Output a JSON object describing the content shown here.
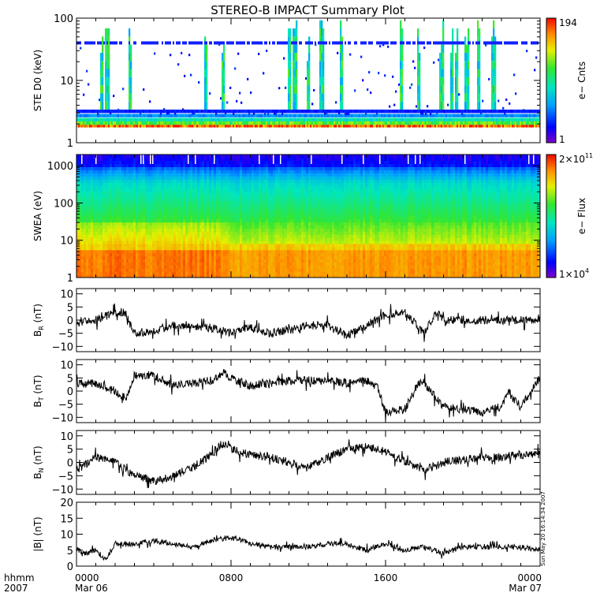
{
  "title": "STEREO-B IMPACT Summary Plot",
  "timestamp": "Sun May 20 16:14:34 2007",
  "x_axis": {
    "header_top": "hhmm",
    "header_bottom": "2007",
    "ticks": [
      {
        "hour": 0,
        "time": "0000",
        "date": "Mar 06"
      },
      {
        "hour": 8,
        "time": "0800",
        "date": ""
      },
      {
        "hour": 16,
        "time": "1600",
        "date": ""
      },
      {
        "hour": 24,
        "time": "0000",
        "date": "Mar 07"
      }
    ]
  },
  "chart_data": [
    {
      "type": "heatmap",
      "ylabel": "STE D0 (keV)",
      "yscale": "log",
      "ylim": [
        1,
        100
      ],
      "yticks": [
        {
          "v": 1,
          "label": "1"
        },
        {
          "v": 10,
          "label": "10"
        },
        {
          "v": 100,
          "label": "100"
        }
      ],
      "xlim": [
        0,
        24
      ],
      "colorbar": {
        "label": "e− Cnts",
        "max_label": "194",
        "min_label": "1",
        "range": [
          1,
          194
        ]
      },
      "bursts_hour": [
        1.3,
        1.6,
        2.8,
        6.7,
        7.6,
        11.0,
        11.3,
        12.0,
        12.7,
        13.7,
        16.8,
        17.7,
        18.9,
        19.4,
        19.7,
        20.2,
        20.8,
        21.6
      ],
      "band_keV": 40
    },
    {
      "type": "heatmap",
      "ylabel": "SWEA (eV)",
      "yscale": "log",
      "ylim": [
        1,
        2000
      ],
      "yticks": [
        {
          "v": 1,
          "label": "1"
        },
        {
          "v": 10,
          "label": "10"
        },
        {
          "v": 100,
          "label": "100"
        },
        {
          "v": 1000,
          "label": "1000"
        }
      ],
      "xlim": [
        0,
        24
      ],
      "colorbar": {
        "label": "e− Flux",
        "max_base": "2×10",
        "max_exp": "11",
        "min_base": "1×10",
        "min_exp": "4",
        "range": [
          10000,
          200000000000
        ]
      }
    },
    {
      "type": "line",
      "ylabel_base": "B",
      "ylabel_sub": "R",
      "ylabel_unit": " (nT)",
      "ylim": [
        -12,
        12
      ],
      "yticks": [
        {
          "v": 10,
          "label": "10"
        },
        {
          "v": 5,
          "label": "5"
        },
        {
          "v": 0,
          "label": "0"
        },
        {
          "v": -5,
          "label": "−5"
        },
        {
          "v": -10,
          "label": "−10"
        }
      ],
      "xlim": [
        0,
        24
      ],
      "x": [
        0,
        1,
        2,
        2.5,
        3,
        4,
        5,
        6,
        7,
        8,
        8.5,
        9,
        10,
        11,
        12,
        13,
        14,
        15,
        15.5,
        16,
        17,
        18,
        18.6,
        19,
        20,
        21,
        22,
        23,
        24
      ],
      "y": [
        0,
        0,
        3,
        3,
        -5,
        -4,
        -2,
        -2,
        -3,
        -5,
        -4,
        -3,
        -5,
        -4,
        -2,
        -2,
        -6,
        -2,
        0,
        2,
        3,
        -5,
        3,
        0,
        0,
        0,
        0,
        0,
        0
      ]
    },
    {
      "type": "line",
      "ylabel_base": "B",
      "ylabel_sub": "T",
      "ylabel_unit": " (nT)",
      "ylim": [
        -12,
        12
      ],
      "yticks": [
        {
          "v": 10,
          "label": "10"
        },
        {
          "v": 5,
          "label": "5"
        },
        {
          "v": 0,
          "label": "0"
        },
        {
          "v": -5,
          "label": "−5"
        },
        {
          "v": -10,
          "label": "−10"
        }
      ],
      "xlim": [
        0,
        24
      ],
      "x": [
        0,
        1,
        2,
        2.6,
        3,
        4,
        5,
        6,
        7,
        7.6,
        8,
        9,
        10,
        11,
        12,
        13,
        14,
        15,
        15.6,
        16,
        17,
        17.7,
        18,
        19,
        20,
        21,
        22,
        22.3,
        23,
        24
      ],
      "y": [
        3,
        3,
        0,
        -3,
        6,
        6,
        2,
        3,
        4,
        7,
        5,
        2,
        3,
        4,
        4,
        4,
        3,
        4,
        1,
        -8,
        -7,
        3,
        3,
        -6,
        -7,
        -8,
        -6,
        0,
        -6,
        5
      ]
    },
    {
      "type": "line",
      "ylabel_base": "B",
      "ylabel_sub": "N",
      "ylabel_unit": " (nT)",
      "ylim": [
        -12,
        12
      ],
      "yticks": [
        {
          "v": 10,
          "label": "10"
        },
        {
          "v": 5,
          "label": "5"
        },
        {
          "v": 0,
          "label": "0"
        },
        {
          "v": -5,
          "label": "−5"
        },
        {
          "v": -10,
          "label": "−10"
        }
      ],
      "xlim": [
        0,
        24
      ],
      "x": [
        0,
        1,
        2,
        3,
        4,
        5,
        6,
        7,
        7.5,
        8,
        9,
        10,
        11,
        12,
        13,
        14,
        15,
        16,
        17,
        18,
        19,
        20,
        21,
        22,
        23,
        24
      ],
      "y": [
        -3,
        2,
        0,
        -5,
        -7,
        -5,
        -2,
        3,
        7,
        5,
        3,
        2,
        0,
        -2,
        2,
        5,
        6,
        4,
        0,
        -3,
        0,
        1,
        2,
        2,
        3,
        3
      ]
    },
    {
      "type": "line",
      "ylabel": "|B| (nT)",
      "ylim": [
        0,
        20
      ],
      "yticks": [
        {
          "v": 20,
          "label": "20"
        },
        {
          "v": 15,
          "label": "15"
        },
        {
          "v": 10,
          "label": "10"
        },
        {
          "v": 5,
          "label": "5"
        },
        {
          "v": 0,
          "label": "0"
        }
      ],
      "xlim": [
        0,
        24
      ],
      "x": [
        0,
        0.5,
        1,
        1.5,
        2,
        3,
        4,
        5,
        6,
        7,
        8,
        9,
        10,
        11,
        12,
        13,
        14,
        15,
        16,
        17,
        18,
        19,
        20,
        21,
        22,
        23,
        24
      ],
      "y": [
        5,
        4,
        5,
        2,
        7,
        7,
        8,
        7,
        6,
        8,
        9,
        7,
        6,
        6,
        6,
        7,
        7,
        5,
        7,
        5,
        6,
        4,
        6,
        6,
        6,
        6,
        5
      ]
    }
  ],
  "colors": {
    "frame": "#000000",
    "line": "#000000"
  }
}
